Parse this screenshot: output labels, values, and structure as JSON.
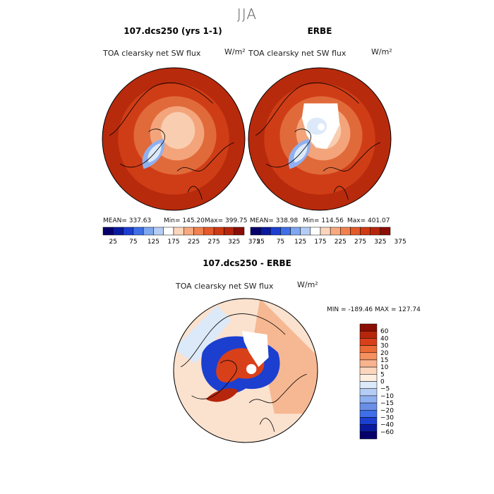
{
  "page_title": "JJA",
  "panels": [
    {
      "title": "107.dcs250 (yrs 1-1)",
      "variable": "TOA clearsky net SW flux",
      "unit": "W/m²",
      "mean_label": "MEAN= 337.63",
      "min_label": "Min= 145.20",
      "max_label": "Max= 399.75"
    },
    {
      "title": "ERBE",
      "variable": "TOA clearsky net SW flux",
      "unit": "W/m²",
      "mean_label": "MEAN= 338.98",
      "min_label": "Min= 114.56",
      "max_label": "Max= 401.07"
    },
    {
      "title": "107.dcs250 - ERBE",
      "variable": "TOA clearsky net SW flux",
      "unit": "W/m²",
      "minmax_label": "MIN = -189.46 MAX = 127.74"
    }
  ],
  "abs_colorbar": {
    "tick_labels": [
      "25",
      "75",
      "125",
      "175",
      "225",
      "275",
      "325",
      "375"
    ],
    "colors": [
      "#07006a",
      "#0a1a9e",
      "#1c3fd0",
      "#3f6fe8",
      "#7ea7f0",
      "#b5cdf5",
      "#ffffff",
      "#fbd6bd",
      "#f7a97f",
      "#f0824f",
      "#e45a28",
      "#cf3a12",
      "#b5260c",
      "#8a0e06"
    ]
  },
  "diff_colorbar": {
    "tick_labels": [
      "60",
      "40",
      "30",
      "20",
      "15",
      "10",
      "5",
      "0",
      "−5",
      "−10",
      "−15",
      "−20",
      "−30",
      "−40",
      "−60"
    ],
    "colors": [
      "#8a0e06",
      "#b5260c",
      "#d8401a",
      "#ec6a35",
      "#f4915f",
      "#f8b48f",
      "#fbd6bd",
      "#fdeee2",
      "#dce9f8",
      "#b5cdf5",
      "#8fb0ef",
      "#6a8fe6",
      "#3f6fe8",
      "#1c3fd0",
      "#0a1a9e",
      "#07006a"
    ]
  },
  "chart_data": [
    {
      "type": "heatmap",
      "title": "107.dcs250 (yrs 1-1)",
      "subtitle": "TOA clearsky net SW flux",
      "unit": "W/m2",
      "projection": "north polar stereographic",
      "stats": {
        "mean": 337.63,
        "min": 145.2,
        "max": 399.75
      },
      "colorbar_ticks": [
        25,
        75,
        125,
        175,
        225,
        275,
        325,
        375
      ]
    },
    {
      "type": "heatmap",
      "title": "ERBE",
      "subtitle": "TOA clearsky net SW flux",
      "unit": "W/m2",
      "projection": "north polar stereographic",
      "stats": {
        "mean": 338.98,
        "min": 114.56,
        "max": 401.07
      },
      "colorbar_ticks": [
        25,
        75,
        125,
        175,
        225,
        275,
        325,
        375
      ]
    },
    {
      "type": "heatmap",
      "title": "107.dcs250 - ERBE",
      "subtitle": "TOA clearsky net SW flux",
      "unit": "W/m2",
      "projection": "north polar stereographic",
      "stats": {
        "min": -189.46,
        "max": 127.74
      },
      "colorbar_ticks": [
        60,
        40,
        30,
        20,
        15,
        10,
        5,
        0,
        -5,
        -10,
        -15,
        -20,
        -30,
        -40,
        -60
      ]
    }
  ]
}
